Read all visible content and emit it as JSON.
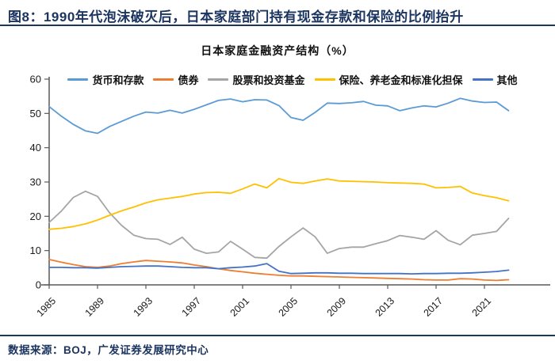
{
  "header": {
    "title": "图8：1990年代泡沫破灭后，日本家庭部门持有现金存款和保险的比例抬升"
  },
  "footer": {
    "source_text": "数据来源：BOJ，广发证券发展研究中心"
  },
  "colors": {
    "accent_navy": "#1c3560",
    "axis": "#595959",
    "tick_label": "#1a1a1a",
    "deposits": "#5B9BD5",
    "bonds": "#ED7D31",
    "equity_funds": "#A5A5A5",
    "insurance": "#FFC000",
    "other": "#4472C4"
  },
  "chart_data": {
    "type": "line",
    "title": "日本家庭金融资产结构（%）",
    "xlabel": "",
    "ylabel": "",
    "ylim": [
      0,
      60
    ],
    "y_ticks": [
      0,
      10,
      20,
      30,
      40,
      50,
      60
    ],
    "x_ticks": [
      1985,
      1989,
      1993,
      1997,
      2001,
      2005,
      2009,
      2013,
      2017,
      2021
    ],
    "x_start": 1985,
    "x_end": 2023,
    "grid": false,
    "legend_position": "top",
    "x": [
      1985,
      1986,
      1987,
      1988,
      1989,
      1990,
      1991,
      1992,
      1993,
      1994,
      1995,
      1996,
      1997,
      1998,
      1999,
      2000,
      2001,
      2002,
      2003,
      2004,
      2005,
      2006,
      2007,
      2008,
      2009,
      2010,
      2011,
      2012,
      2013,
      2014,
      2015,
      2016,
      2017,
      2018,
      2019,
      2020,
      2021,
      2022,
      2023
    ],
    "series": [
      {
        "id": "deposits",
        "name": "货币和存款",
        "color": "#5B9BD5",
        "values": [
          52.0,
          49.2,
          46.8,
          44.9,
          44.2,
          46.2,
          47.7,
          49.2,
          50.4,
          50.1,
          50.9,
          50.1,
          51.2,
          52.5,
          53.8,
          54.2,
          53.4,
          54.0,
          53.9,
          52.3,
          48.8,
          48.0,
          50.3,
          53.0,
          52.9,
          53.1,
          53.5,
          52.4,
          52.2,
          50.8,
          51.6,
          52.2,
          51.9,
          53.0,
          54.4,
          53.6,
          53.2,
          53.3,
          50.8
        ]
      },
      {
        "id": "bonds",
        "name": "债券",
        "color": "#ED7D31",
        "values": [
          7.4,
          6.6,
          5.9,
          5.3,
          5.1,
          5.5,
          6.2,
          6.7,
          7.1,
          6.9,
          6.7,
          6.4,
          5.8,
          5.3,
          4.7,
          4.2,
          3.8,
          3.4,
          3.1,
          2.8,
          2.6,
          2.6,
          2.5,
          2.4,
          2.3,
          2.2,
          2.1,
          2.0,
          1.9,
          1.8,
          1.7,
          1.5,
          1.4,
          1.4,
          1.8,
          1.7,
          1.4,
          1.3,
          1.5
        ]
      },
      {
        "id": "equity_funds",
        "name": "股票和投资基金",
        "color": "#A5A5A5",
        "values": [
          18.2,
          21.5,
          25.5,
          27.3,
          25.8,
          21.0,
          17.3,
          14.5,
          13.5,
          13.3,
          11.8,
          13.9,
          10.4,
          9.2,
          9.6,
          12.7,
          10.4,
          8.0,
          7.8,
          11.2,
          14.0,
          16.6,
          14.0,
          9.2,
          10.6,
          11.0,
          11.0,
          12.0,
          12.9,
          14.4,
          13.9,
          13.3,
          15.8,
          13.0,
          11.7,
          14.5,
          15.0,
          15.6,
          19.4
        ]
      },
      {
        "id": "insurance",
        "name": "保险、养老金和标准化担保",
        "color": "#FFC000",
        "values": [
          16.2,
          16.5,
          17.0,
          17.8,
          18.9,
          20.3,
          21.6,
          22.7,
          23.9,
          24.8,
          25.3,
          25.8,
          26.5,
          26.9,
          27.0,
          26.7,
          28.0,
          29.4,
          28.3,
          31.0,
          29.9,
          29.6,
          30.3,
          30.9,
          30.3,
          30.2,
          30.1,
          30.0,
          29.8,
          29.7,
          29.6,
          29.4,
          28.3,
          28.4,
          28.7,
          26.8,
          26.0,
          25.4,
          24.5
        ]
      },
      {
        "id": "other",
        "name": "其他",
        "color": "#4472C4",
        "values": [
          5.1,
          5.1,
          5.0,
          5.0,
          4.9,
          5.1,
          5.3,
          5.4,
          5.5,
          5.5,
          5.3,
          5.1,
          5.0,
          5.0,
          4.7,
          5.0,
          5.2,
          5.5,
          6.2,
          4.0,
          3.3,
          3.4,
          3.5,
          3.5,
          3.4,
          3.4,
          3.3,
          3.3,
          3.3,
          3.3,
          3.2,
          3.3,
          3.3,
          3.4,
          3.4,
          3.5,
          3.7,
          3.9,
          4.3
        ]
      }
    ]
  }
}
